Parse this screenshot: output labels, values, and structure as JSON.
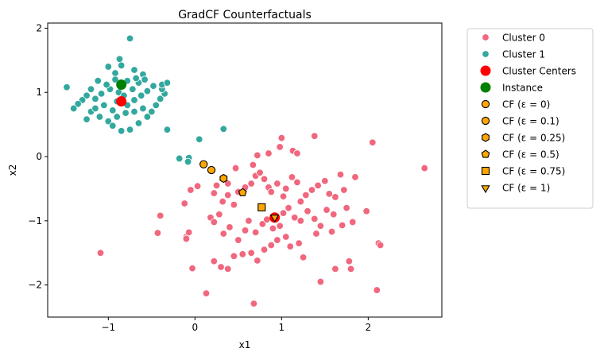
{
  "chart_data": {
    "type": "scatter",
    "title": "GradCF Counterfactuals",
    "xlabel": "x1",
    "ylabel": "x2",
    "xlim": [
      -1.7,
      2.85
    ],
    "ylim": [
      -2.5,
      2.08
    ],
    "xticks": [
      -1,
      0,
      1,
      2
    ],
    "yticks": [
      -2,
      -1,
      0,
      1,
      2
    ],
    "xtick_labels": [
      "−1",
      "0",
      "1",
      "2"
    ],
    "ytick_labels": [
      "−2",
      "−1",
      "0",
      "1",
      "2"
    ],
    "grid": false,
    "legend_position": "outside-right",
    "series": [
      {
        "name": "Cluster 0",
        "marker": "circle",
        "color": "#f0677e",
        "points": [
          [
            -1.09,
            -1.5
          ],
          [
            0.13,
            -2.13
          ],
          [
            0.68,
            -2.29
          ],
          [
            2.1,
            -2.08
          ],
          [
            -0.03,
            -1.74
          ],
          [
            0.22,
            -1.63
          ],
          [
            0.3,
            -1.72
          ],
          [
            0.38,
            -1.75
          ],
          [
            0.45,
            -1.55
          ],
          [
            0.55,
            -1.52
          ],
          [
            0.65,
            -1.5
          ],
          [
            0.72,
            -1.62
          ],
          [
            0.8,
            -1.45
          ],
          [
            0.88,
            -1.38
          ],
          [
            0.95,
            -1.3
          ],
          [
            1.05,
            -1.25
          ],
          [
            1.1,
            -1.4
          ],
          [
            1.2,
            -1.35
          ],
          [
            1.25,
            -1.57
          ],
          [
            1.45,
            -1.95
          ],
          [
            1.62,
            -1.75
          ],
          [
            1.78,
            -1.63
          ],
          [
            1.8,
            -1.75
          ],
          [
            2.12,
            -1.35
          ],
          [
            2.14,
            -1.38
          ],
          [
            -0.43,
            -1.19
          ],
          [
            -0.1,
            -1.25
          ],
          [
            -0.07,
            -1.18
          ],
          [
            0.18,
            -0.95
          ],
          [
            0.22,
            -1.02
          ],
          [
            0.28,
            -0.9
          ],
          [
            0.33,
            -1.2
          ],
          [
            0.4,
            -1.1
          ],
          [
            0.5,
            -1.3
          ],
          [
            0.58,
            -1.15
          ],
          [
            0.62,
            -1.0
          ],
          [
            0.7,
            -1.18
          ],
          [
            0.78,
            -1.05
          ],
          [
            0.83,
            -0.98
          ],
          [
            0.9,
            -1.12
          ],
          [
            0.98,
            -1.08
          ],
          [
            1.02,
            -0.88
          ],
          [
            1.08,
            -0.8
          ],
          [
            1.15,
            -0.95
          ],
          [
            1.22,
            -1.0
          ],
          [
            1.3,
            -0.85
          ],
          [
            1.38,
            -0.97
          ],
          [
            1.45,
            -1.08
          ],
          [
            1.52,
            -0.83
          ],
          [
            1.6,
            -0.9
          ],
          [
            1.7,
            -1.07
          ],
          [
            1.75,
            -0.8
          ],
          [
            1.82,
            -1.02
          ],
          [
            1.58,
            -1.17
          ],
          [
            1.4,
            -1.2
          ],
          [
            -0.4,
            -0.92
          ],
          [
            -0.12,
            -0.73
          ],
          [
            -0.05,
            -0.52
          ],
          [
            0.03,
            -0.46
          ],
          [
            0.22,
            -0.57
          ],
          [
            0.25,
            -0.45
          ],
          [
            0.32,
            -0.7
          ],
          [
            0.38,
            -0.6
          ],
          [
            0.45,
            -0.75
          ],
          [
            0.5,
            -0.55
          ],
          [
            0.58,
            -0.48
          ],
          [
            0.65,
            -0.42
          ],
          [
            0.7,
            -0.3
          ],
          [
            0.75,
            -0.25
          ],
          [
            0.8,
            -0.35
          ],
          [
            0.85,
            -0.48
          ],
          [
            0.88,
            -0.55
          ],
          [
            0.95,
            -0.42
          ],
          [
            1.02,
            -0.62
          ],
          [
            1.05,
            -0.5
          ],
          [
            1.12,
            -0.32
          ],
          [
            1.18,
            -0.4
          ],
          [
            1.22,
            -0.7
          ],
          [
            1.28,
            -0.6
          ],
          [
            1.35,
            -0.52
          ],
          [
            1.42,
            -0.45
          ],
          [
            1.5,
            -0.38
          ],
          [
            1.55,
            -0.58
          ],
          [
            1.62,
            -0.63
          ],
          [
            1.68,
            -0.28
          ],
          [
            1.72,
            -0.52
          ],
          [
            1.85,
            -0.32
          ],
          [
            1.98,
            -0.85
          ],
          [
            -0.1,
            -1.28
          ],
          [
            0.67,
            -0.13
          ],
          [
            0.72,
            0.02
          ],
          [
            0.85,
            0.05
          ],
          [
            0.98,
            0.15
          ],
          [
            1.0,
            0.29
          ],
          [
            1.13,
            0.09
          ],
          [
            1.18,
            0.05
          ],
          [
            1.38,
            0.32
          ],
          [
            2.05,
            0.22
          ],
          [
            2.65,
            -0.18
          ],
          [
            0.47,
            -0.18
          ],
          [
            0.38,
            -0.42
          ]
        ]
      },
      {
        "name": "Cluster 1",
        "marker": "circle",
        "color": "#33a89e",
        "points": [
          [
            -0.75,
            1.84
          ],
          [
            -0.87,
            1.52
          ],
          [
            -0.85,
            1.42
          ],
          [
            -0.7,
            1.35
          ],
          [
            -0.6,
            1.28
          ],
          [
            -0.92,
            1.3
          ],
          [
            -1.0,
            1.4
          ],
          [
            -1.12,
            1.18
          ],
          [
            -1.2,
            1.05
          ],
          [
            -1.25,
            0.95
          ],
          [
            -1.3,
            0.88
          ],
          [
            -1.35,
            0.82
          ],
          [
            -1.4,
            0.75
          ],
          [
            -1.48,
            1.08
          ],
          [
            -1.2,
            0.7
          ],
          [
            -1.1,
            0.62
          ],
          [
            -1.0,
            0.55
          ],
          [
            -0.95,
            0.48
          ],
          [
            -0.85,
            0.4
          ],
          [
            -0.75,
            0.42
          ],
          [
            -0.65,
            0.52
          ],
          [
            -0.55,
            0.62
          ],
          [
            -0.5,
            0.7
          ],
          [
            -0.45,
            0.8
          ],
          [
            -0.4,
            0.9
          ],
          [
            -0.35,
            0.98
          ],
          [
            -0.38,
            1.05
          ],
          [
            -0.48,
            1.1
          ],
          [
            -0.55,
            1.02
          ],
          [
            -0.62,
            0.95
          ],
          [
            -0.7,
            0.88
          ],
          [
            -0.78,
            0.8
          ],
          [
            -0.95,
            0.72
          ],
          [
            -1.05,
            0.8
          ],
          [
            -1.15,
            0.9
          ],
          [
            -1.08,
            0.98
          ],
          [
            -0.98,
            1.05
          ],
          [
            -0.88,
            1.0
          ],
          [
            -0.82,
            0.95
          ],
          [
            -0.72,
            1.05
          ],
          [
            -0.65,
            1.15
          ],
          [
            -0.58,
            1.2
          ],
          [
            -0.68,
            1.22
          ],
          [
            -0.78,
            1.18
          ],
          [
            -0.92,
            1.2
          ],
          [
            -1.02,
            1.12
          ],
          [
            -0.8,
            0.68
          ],
          [
            -0.7,
            0.7
          ],
          [
            -0.6,
            0.75
          ],
          [
            -0.9,
            0.62
          ],
          [
            -1.25,
            0.58
          ],
          [
            -0.32,
            0.42
          ],
          [
            0.05,
            0.27
          ],
          [
            0.33,
            0.43
          ],
          [
            -0.18,
            -0.03
          ],
          [
            -0.07,
            -0.02
          ],
          [
            -0.08,
            -0.08
          ],
          [
            -0.38,
            1.12
          ],
          [
            -0.32,
            1.15
          ],
          [
            -1.15,
            0.75
          ],
          [
            -0.9,
            0.86
          ]
        ]
      },
      {
        "name": "Cluster Centers",
        "marker": "circle-large",
        "color": "#ff0000",
        "points": [
          [
            -0.85,
            0.86
          ],
          [
            0.92,
            -0.95
          ]
        ]
      },
      {
        "name": "Instance",
        "marker": "circle-large",
        "color": "#008000",
        "points": [
          [
            -0.85,
            1.12
          ]
        ]
      },
      {
        "name": "CF (ε = 0)",
        "marker": "circle",
        "color": "#ffa500",
        "points": [
          [
            0.1,
            -0.12
          ]
        ]
      },
      {
        "name": "CF (ε = 0.1)",
        "marker": "circle",
        "color": "#ffa500",
        "points": [
          [
            0.19,
            -0.21
          ]
        ]
      },
      {
        "name": "CF (ε = 0.25)",
        "marker": "hexagon",
        "color": "#ffa500",
        "points": [
          [
            0.33,
            -0.34
          ]
        ]
      },
      {
        "name": "CF (ε = 0.5)",
        "marker": "pentagon",
        "color": "#ffa500",
        "points": [
          [
            0.55,
            -0.56
          ]
        ]
      },
      {
        "name": "CF (ε = 0.75)",
        "marker": "square",
        "color": "#ffa500",
        "points": [
          [
            0.77,
            -0.79
          ]
        ]
      },
      {
        "name": "CF (ε = 1)",
        "marker": "triangle-down",
        "color": "#ffa500",
        "points": [
          [
            0.92,
            -0.94
          ]
        ]
      }
    ]
  }
}
